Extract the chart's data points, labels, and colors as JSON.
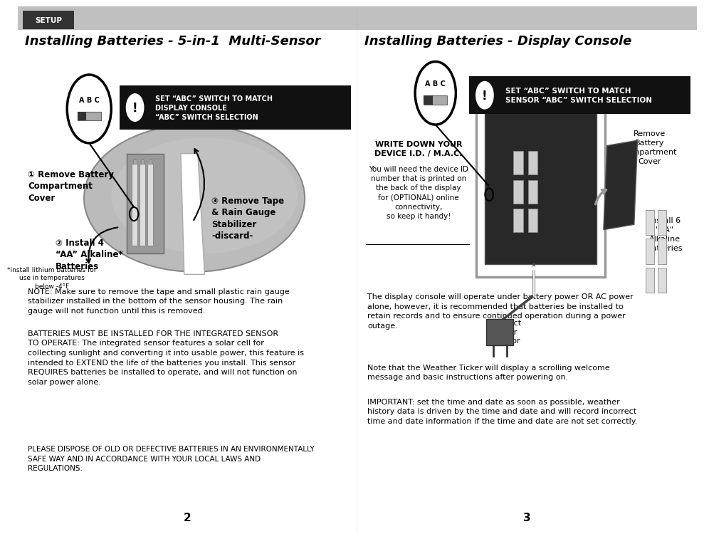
{
  "page_bg": "#ffffff",
  "setup_tab_text": "SETUP",
  "left_title": "Installing Batteries - 5-in-1  Multi-Sensor",
  "right_title": "Installing Batteries - Display Console",
  "warning_text_left": "SET “ABC” SWITCH TO MATCH\nDISPLAY CONSOLE\n“ABC” SWITCH SELECTION",
  "warning_text_right": "SET “ABC” SWITCH TO MATCH\nSENSOR “ABC” SWITCH SELECTION",
  "step1_text": "① Remove Battery\nCompartment\nCover",
  "step2_text": "② Install 4\n“AA” Alkaline*\nBatteries",
  "step2_sub": "*install lithium batteries for\nuse in temperatures\nbelow -4°F",
  "step3_text": "③ Remove Tape\n& Rain Gauge\nStabilizer\n-discard-",
  "write_down_title": "WRITE DOWN YOUR\nDEVICE I.D. / M.A.C.",
  "write_down_body": "You will need the device ID\nnumber that is printed on\nthe back of the display\nfor (OPTIONAL) online\nconnectivity,\nso keep it handy!",
  "remove_cover_right": "Remove\nBattery\nCompartment\nCover",
  "connect_power": "Connect\npower\nadaptor",
  "install_6aa": "Install 6\n\"AA\"\nAlkaline\nBatteries",
  "note_text": "NOTE: Make sure to remove the tape and small plastic rain gauge\nstabilizer installed in the bottom of the sensor housing. The rain\ngauge will not function until this is removed.",
  "batteries_text": "BATTERIES MUST BE INSTALLED FOR THE INTEGRATED SENSOR\nTO OPERATE: The integrated sensor features a solar cell for\ncollecting sunlight and converting it into usable power, this feature is\nintended to EXTEND the life of the batteries you install. This sensor\nREQUIRES batteries be installed to operate, and will not function on\nsolar power alone.",
  "dispose_text": "PLEASE DISPOSE OF OLD OR DEFECTIVE BATTERIES IN AN ENVIRONMENTALLY\nSAFE WAY AND IN ACCORDANCE WITH YOUR LOCAL LAWS AND\nREGULATIONS.",
  "display_note1": "The display console will operate under battery power OR AC power\nalone, however, it is recommended that batteries be installed to\nretain records and to ensure continued operation during a power\noutage.",
  "display_note2": "Note that the Weather Ticker will display a scrolling welcome\nmessage and basic instructions after powering on.",
  "display_note3": "IMPORTANT: set the time and date as soon as possible, weather\nhistory data is driven by the time and date and will record incorrect\ntime and date information if the time and date are not set correctly.",
  "page_left": "2",
  "page_right": "3"
}
